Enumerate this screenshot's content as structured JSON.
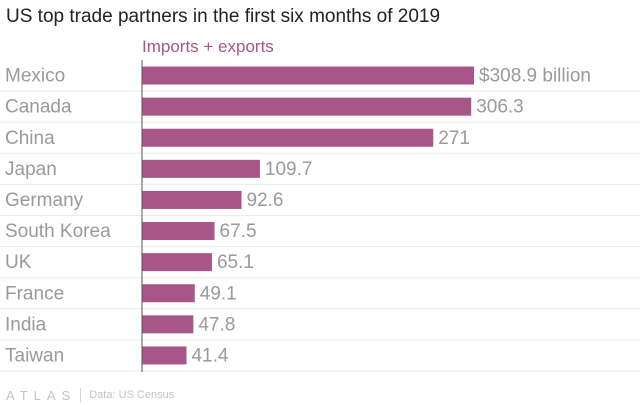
{
  "title": "US top trade partners in the first six months of 2019",
  "footer": {
    "brand": "ATLAS",
    "source": "Data: US Census"
  },
  "colors": {
    "bar": "#a8568a",
    "series_label": "#a8568a",
    "category": "#9a9a9a",
    "value": "#9a9a9a",
    "gridline": "#ececec",
    "axis": "#555555"
  },
  "chart_data": {
    "type": "bar",
    "orientation": "horizontal",
    "series": [
      {
        "name": "Imports + exports",
        "values": [
          308.9,
          306.3,
          271,
          109.7,
          92.6,
          67.5,
          65.1,
          49.1,
          47.8,
          41.4
        ]
      }
    ],
    "categories": [
      "Mexico",
      "Canada",
      "China",
      "Japan",
      "Germany",
      "South Korea",
      "UK",
      "France",
      "India",
      "Taiwan"
    ],
    "value_labels": [
      "$308.9 billion",
      "306.3",
      "271",
      "109.7",
      "92.6",
      "67.5",
      "65.1",
      "49.1",
      "47.8",
      "41.4"
    ],
    "xlim": [
      0,
      308.9
    ],
    "grid": true,
    "title": "US top trade partners in the first six months of 2019"
  }
}
